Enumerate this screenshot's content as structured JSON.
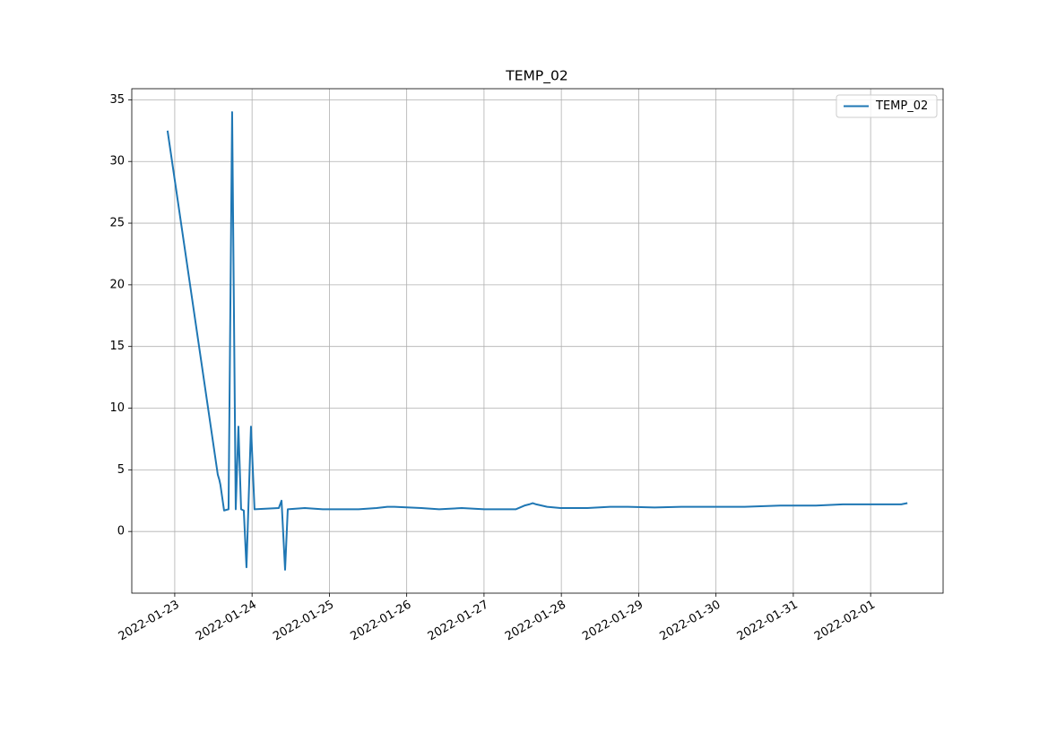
{
  "chart_data": {
    "type": "line",
    "title": "TEMP_02",
    "x": [
      "2022-01-22T21:46",
      "2022-01-23T13:22",
      "2022-01-23T13:50",
      "2022-01-23T14:10",
      "2022-01-23T15:19",
      "2022-01-23T16:42",
      "2022-01-23T17:49",
      "2022-01-23T18:56",
      "2022-01-23T19:46",
      "2022-01-23T20:36",
      "2022-01-23T21:26",
      "2022-01-23T22:16",
      "2022-01-23T23:40",
      "2022-01-24T00:46",
      "2022-01-24T08:18",
      "2022-01-24T09:09",
      "2022-01-24T10:15",
      "2022-01-24T11:05",
      "2022-01-24T16:22",
      "2022-01-24T21:56",
      "2022-01-25T09:04",
      "2022-01-25T14:39",
      "2022-01-25T18:00",
      "2022-01-25T20:10",
      "2022-01-26T04:33",
      "2022-01-26T10:05",
      "2022-01-26T17:05",
      "2022-01-27T00:05",
      "2022-01-27T09:50",
      "2022-01-27T12:32",
      "2022-01-27T14:00",
      "2022-01-27T15:07",
      "2022-01-27T16:14",
      "2022-01-27T19:35",
      "2022-01-27T23:44",
      "2022-01-28T08:05",
      "2022-01-28T15:08",
      "2022-01-28T20:43",
      "2022-01-29T04:57",
      "2022-01-29T13:13",
      "2022-01-30T00:27",
      "2022-01-30T08:51",
      "2022-01-30T19:55",
      "2022-01-31T07:03",
      "2022-01-31T15:24",
      "2022-02-01T05:17",
      "2022-02-01T09:30",
      "2022-02-01T11:25"
    ],
    "series": [
      {
        "name": "TEMP_02",
        "color": "#1f77b4",
        "values": [
          32.5,
          4.6,
          4.2,
          3.8,
          1.7,
          1.8,
          34.0,
          1.8,
          8.5,
          1.8,
          1.7,
          -2.9,
          8.5,
          1.8,
          1.9,
          2.5,
          -3.1,
          1.8,
          1.9,
          1.8,
          1.8,
          1.9,
          2.0,
          2.0,
          1.9,
          1.8,
          1.9,
          1.8,
          1.8,
          2.1,
          2.2,
          2.3,
          2.2,
          2.0,
          1.9,
          1.9,
          2.0,
          2.0,
          1.95,
          2.0,
          2.0,
          2.0,
          2.1,
          2.1,
          2.2,
          2.2,
          2.2,
          2.3
        ]
      }
    ],
    "xlim": [
      "2022-01-22T10:40",
      "2022-02-01T22:30"
    ],
    "xticks": [
      "2022-01-23",
      "2022-01-24",
      "2022-01-25",
      "2022-01-26",
      "2022-01-27",
      "2022-01-28",
      "2022-01-29",
      "2022-01-30",
      "2022-01-31",
      "2022-02-01"
    ],
    "ylim": [
      -5.0,
      35.9
    ],
    "yticks": [
      0,
      5,
      10,
      15,
      20,
      25,
      30,
      35
    ],
    "grid": true,
    "legend": "upper right"
  }
}
